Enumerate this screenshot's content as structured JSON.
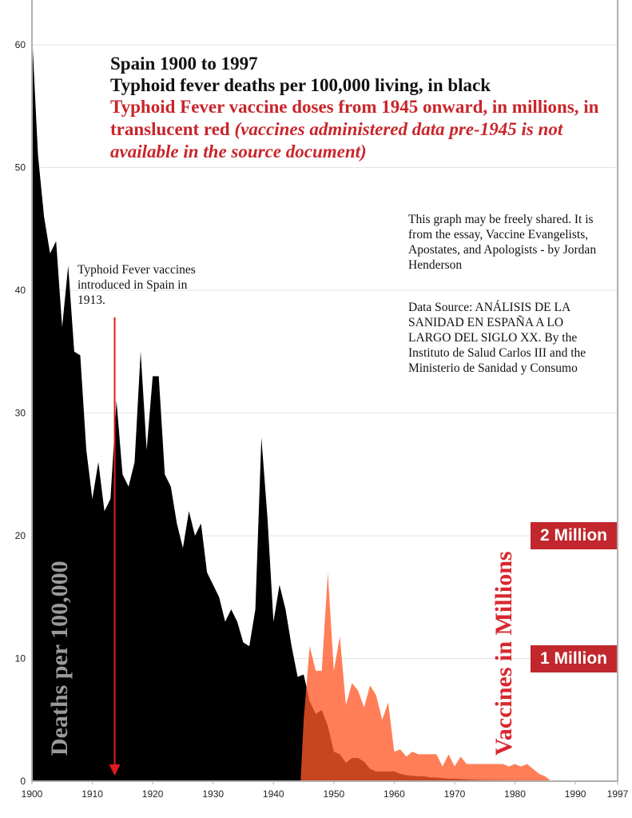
{
  "chart_data": {
    "type": "area",
    "title": "Spain 1900 to 1997",
    "subtitle": "Typhoid fever deaths per 100,000 living, in black",
    "subtitle2_main": "Typhoid Fever vaccine doses from 1945 onward, in millions, in translucent red",
    "subtitle2_italic": "(vaccines administered data pre-1945 is not available in the source document)",
    "ylabel_left": "Deaths per 100,000",
    "ylabel_right": "Vaccines in Millions",
    "xlim": [
      1900,
      1997
    ],
    "ylim": [
      0,
      60
    ],
    "x_ticks": [
      "1900",
      "1910",
      "1920",
      "1930",
      "1940",
      "1950",
      "1960",
      "1970",
      "1980",
      "1990",
      "1997"
    ],
    "y_ticks": [
      "0",
      "10",
      "20",
      "30",
      "40",
      "50",
      "60"
    ],
    "grid": "horizontal",
    "series": [
      {
        "name": "Typhoid fever deaths per 100,000 living",
        "color": "#000000",
        "x": [
          1900,
          1901,
          1902,
          1903,
          1904,
          1905,
          1906,
          1907,
          1908,
          1909,
          1910,
          1911,
          1912,
          1913,
          1914,
          1915,
          1916,
          1917,
          1918,
          1919,
          1920,
          1921,
          1922,
          1923,
          1924,
          1925,
          1926,
          1927,
          1928,
          1929,
          1930,
          1931,
          1932,
          1933,
          1934,
          1935,
          1936,
          1937,
          1938,
          1939,
          1940,
          1941,
          1942,
          1943,
          1944,
          1945,
          1946,
          1947,
          1948,
          1949,
          1950,
          1951,
          1952,
          1953,
          1954,
          1955,
          1956,
          1957,
          1958,
          1959,
          1960,
          1961,
          1962,
          1963,
          1964,
          1965,
          1966,
          1967,
          1968,
          1969,
          1970,
          1972,
          1975,
          1980,
          1985,
          1990,
          1997
        ],
        "values": [
          61,
          51,
          46,
          43,
          44,
          37,
          42,
          35,
          34.7,
          27,
          23,
          26,
          22,
          23,
          31,
          25,
          24,
          26,
          35,
          27,
          33,
          33,
          25,
          24,
          21,
          19,
          22,
          20,
          21,
          17,
          16,
          15,
          13,
          14,
          13,
          11.3,
          11,
          14,
          28,
          21.5,
          13,
          16,
          14,
          11,
          8.5,
          8.7,
          6.5,
          5.5,
          5.8,
          4.5,
          2.4,
          2.2,
          1.5,
          1.9,
          1.9,
          1.6,
          1.0,
          0.8,
          0.8,
          0.8,
          0.8,
          0.6,
          0.5,
          0.45,
          0.4,
          0.4,
          0.3,
          0.3,
          0.25,
          0.2,
          0.2,
          0.15,
          0.1,
          0.08,
          0.05,
          0.03,
          0.02
        ]
      },
      {
        "name": "Typhoid Fever vaccine doses (millions)",
        "color": "#ff5a28",
        "x": [
          1944.5,
          1945,
          1946,
          1947,
          1948,
          1949,
          1950,
          1951,
          1952,
          1953,
          1954,
          1955,
          1956,
          1957,
          1958,
          1959,
          1960,
          1961,
          1962,
          1963,
          1964,
          1965,
          1966,
          1967,
          1968,
          1969,
          1970,
          1971,
          1972,
          1973,
          1974,
          1975,
          1976,
          1977,
          1978,
          1979,
          1980,
          1981,
          1982,
          1983,
          1984,
          1985,
          1986
        ],
        "values": [
          0,
          0.5,
          1.1,
          0.9,
          0.9,
          1.7,
          0.9,
          1.18,
          0.62,
          0.8,
          0.74,
          0.6,
          0.78,
          0.7,
          0.5,
          0.64,
          0.24,
          0.26,
          0.2,
          0.24,
          0.22,
          0.22,
          0.22,
          0.22,
          0.12,
          0.22,
          0.12,
          0.2,
          0.14,
          0.14,
          0.14,
          0.14,
          0.14,
          0.14,
          0.14,
          0.12,
          0.14,
          0.12,
          0.14,
          0.1,
          0.06,
          0.04,
          0
        ]
      }
    ],
    "annotations": {
      "intro_label": "Typhoid Fever vaccines introduced in Spain in 1913.",
      "intro_year": 1913.7,
      "share_note": "This graph may be freely shared. It is from the essay, Vaccine Evangelists, Apostates, and Apologists - by Jordan Henderson",
      "source_note": "Data Source: ANÁLISIS DE LA SANIDAD EN ESPAÑA A LO LARGO DEL SIGLO XX. By the Instituto de Salud Carlos III and the Ministerio de Sanidad y Consumo",
      "badge_2m": "2 Million",
      "badge_1m": "1 Million",
      "badge_2m_value": 20,
      "badge_1m_value": 10
    }
  }
}
